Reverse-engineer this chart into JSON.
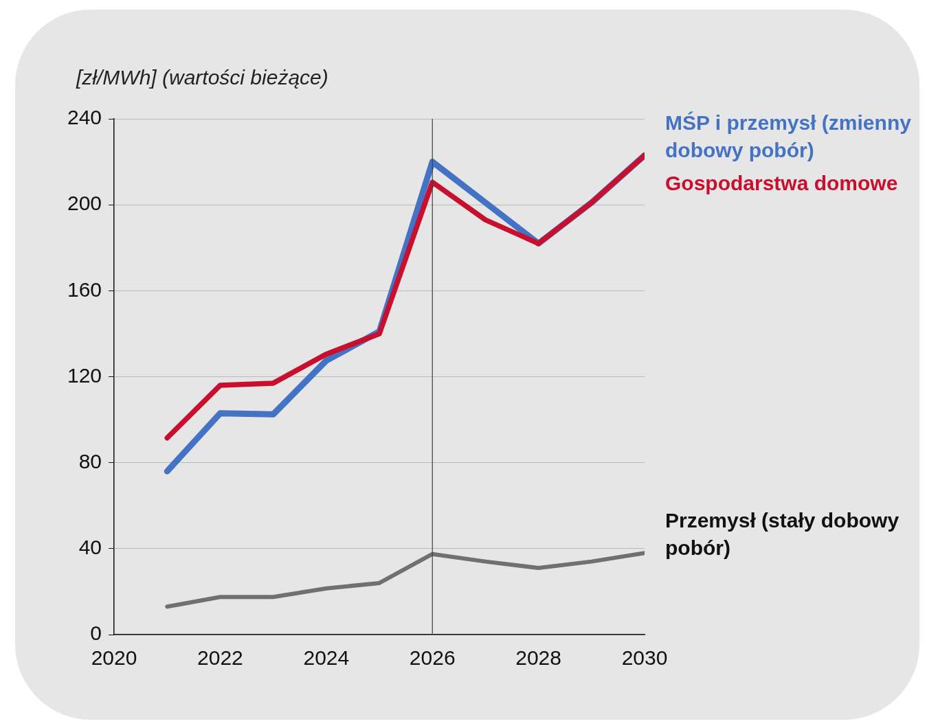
{
  "chart_data": {
    "type": "line",
    "ylabel": "[zł/MWh] (wartości bieżące)",
    "x": [
      2021,
      2022,
      2023,
      2024,
      2025,
      2026,
      2027,
      2028,
      2029,
      2030
    ],
    "series": [
      {
        "name": "MŚP i przemysł (zmienny dobowy pobór)",
        "color": "#4472c4",
        "values": [
          76,
          103,
          102.5,
          127.5,
          141,
          220,
          201,
          182,
          201,
          223
        ]
      },
      {
        "name": "Gospodarstwa domowe",
        "color": "#c8102e",
        "values": [
          91.5,
          116,
          117,
          130.5,
          140,
          210.5,
          193,
          182,
          201,
          223
        ]
      },
      {
        "name": "Przemysł (stały dobowy pobór)",
        "color": "#707070",
        "values": [
          13,
          17.5,
          17.5,
          21.5,
          24,
          37.5,
          34,
          31,
          34,
          38
        ]
      }
    ],
    "xlim": [
      2020,
      2030
    ],
    "xticks": [
      2020,
      2022,
      2024,
      2026,
      2028,
      2030
    ],
    "ylim": [
      0,
      240
    ],
    "yticks": [
      0,
      40,
      80,
      120,
      160,
      200,
      240
    ],
    "grid": "y",
    "legend": false,
    "marker": "none",
    "line_style": "solid",
    "ref_lines": [
      {
        "axis": "x",
        "value": 2026,
        "color": "#404040"
      }
    ]
  }
}
